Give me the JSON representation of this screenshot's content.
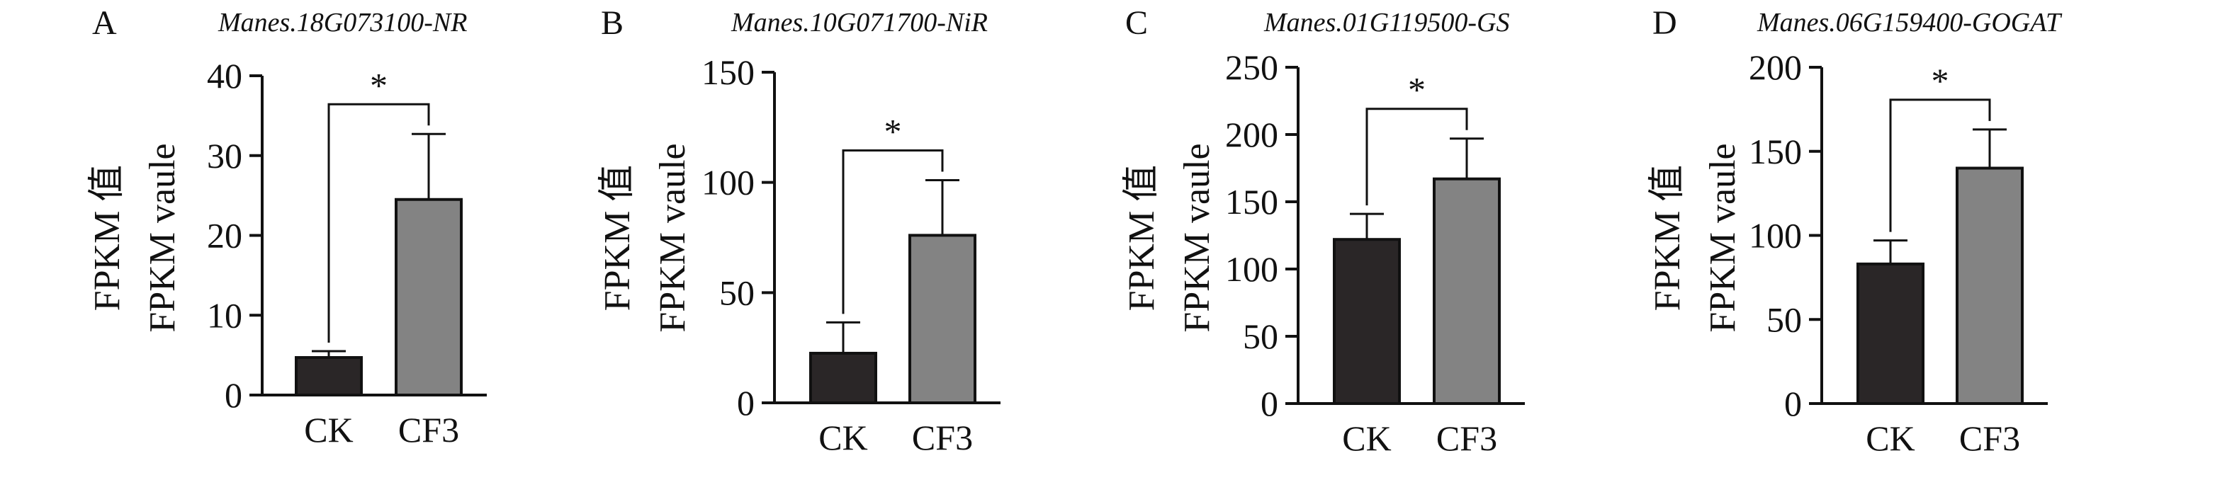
{
  "chart_data": [
    {
      "type": "bar",
      "panel": "A",
      "title": "Manes.18G073100-NR",
      "ylabel_lines": [
        "FPKM 值",
        "FPKM vaule"
      ],
      "categories": [
        "CK",
        "CF3"
      ],
      "values": [
        4.7,
        24.5
      ],
      "errors": [
        0.8,
        8.2
      ],
      "colors": [
        "#2a2627",
        "#838383"
      ],
      "ylim": [
        0,
        40
      ],
      "yticks": [
        0,
        10,
        20,
        30,
        40
      ],
      "significance": "*"
    },
    {
      "type": "bar",
      "panel": "B",
      "title": "Manes.10G071700-NiR",
      "ylabel_lines": [
        "FPKM 值",
        "FPKM vaule"
      ],
      "categories": [
        "CK",
        "CF3"
      ],
      "values": [
        22.5,
        76
      ],
      "errors": [
        14,
        25
      ],
      "colors": [
        "#2a2627",
        "#838383"
      ],
      "ylim": [
        0,
        150
      ],
      "yticks": [
        0,
        50,
        100,
        150
      ],
      "significance": "*"
    },
    {
      "type": "bar",
      "panel": "C",
      "title": "Manes.01G119500-GS",
      "ylabel_lines": [
        "FPKM 值",
        "FPKM vaule"
      ],
      "categories": [
        "CK",
        "CF3"
      ],
      "values": [
        122,
        167
      ],
      "errors": [
        19,
        30
      ],
      "colors": [
        "#2a2627",
        "#838383"
      ],
      "ylim": [
        0,
        250
      ],
      "yticks": [
        0,
        50,
        100,
        150,
        200,
        250
      ],
      "significance": "*"
    },
    {
      "type": "bar",
      "panel": "D",
      "title": "Manes.06G159400-GOGAT",
      "ylabel_lines": [
        "FPKM 值",
        "FPKM vaule"
      ],
      "categories": [
        "CK",
        "CF3"
      ],
      "values": [
        83,
        140
      ],
      "errors": [
        14,
        23
      ],
      "colors": [
        "#2a2627",
        "#838383"
      ],
      "ylim": [
        0,
        200
      ],
      "yticks": [
        0,
        50,
        100,
        150,
        200
      ],
      "significance": "*"
    }
  ]
}
